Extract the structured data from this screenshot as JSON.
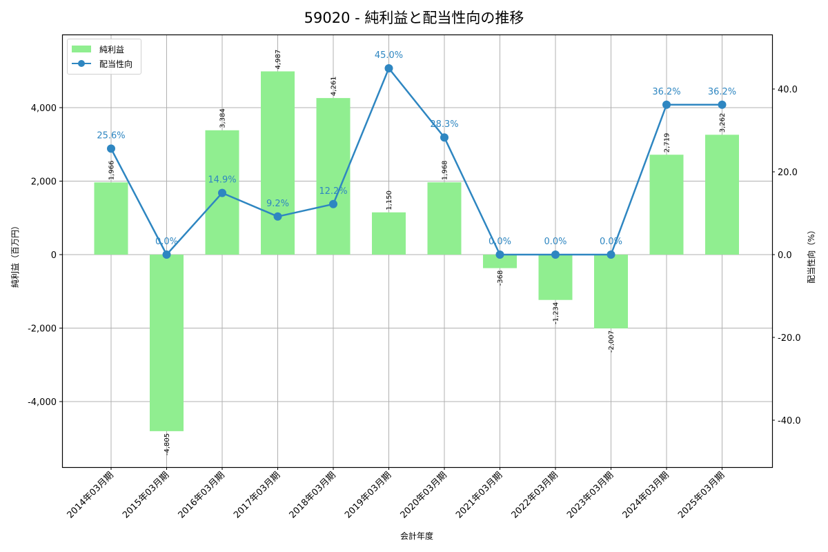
{
  "title": "59020 - 純利益と配当性向の推移",
  "legend": {
    "bar_label": "純利益",
    "line_label": "配当性向"
  },
  "colors": {
    "bar": "#90ee90",
    "line": "#2e86c1",
    "grid": "#b0b0b0"
  },
  "axes": {
    "xlabel": "会計年度",
    "ylabel_left": "純利益（百万円）",
    "ylabel_right": "配当性向（%）",
    "left_ticks": [
      "4,000",
      "2,000",
      "0",
      "-2,000",
      "-4,000"
    ],
    "right_ticks": [
      "40.0",
      "20.0",
      "0.0",
      "-20.0",
      "-40.0"
    ]
  },
  "chart_data": {
    "type": "bar+line",
    "title": "59020 - 純利益と配当性向の推移",
    "xlabel": "会計年度",
    "ylabel": "純利益（百万円）",
    "ylabel_right": "配当性向（%）",
    "categories": [
      "2014年03月期",
      "2015年03月期",
      "2016年03月期",
      "2017年03月期",
      "2018年03月期",
      "2019年03月期",
      "2020年03月期",
      "2021年03月期",
      "2022年03月期",
      "2023年03月期",
      "2024年03月期",
      "2025年03月期"
    ],
    "series": [
      {
        "name": "純利益",
        "type": "bar",
        "axis": "left",
        "values": [
          1966,
          -4805,
          3384,
          4987,
          4261,
          1150,
          1968,
          -368,
          -1234,
          -2007,
          2719,
          3262
        ],
        "labels": [
          "1,966",
          "-4,805",
          "3,384",
          "4,987",
          "4,261",
          "1,150",
          "1,968",
          "-368",
          "-1,234",
          "-2,007",
          "2,719",
          "3,262"
        ]
      },
      {
        "name": "配当性向",
        "type": "line",
        "axis": "right",
        "values": [
          25.6,
          0.0,
          14.9,
          9.2,
          12.2,
          45.0,
          28.3,
          0.0,
          0.0,
          0.0,
          36.2,
          36.2
        ],
        "labels": [
          "25.6%",
          "0.0%",
          "14.9%",
          "9.2%",
          "12.2%",
          "45.0%",
          "28.3%",
          "0.0%",
          "0.0%",
          "0.0%",
          "36.2%",
          "36.2%"
        ]
      }
    ],
    "ylim": [
      -5800,
      5990
    ],
    "ylim_right": [
      -52,
      53
    ],
    "grid": true,
    "legend_position": "upper left"
  }
}
